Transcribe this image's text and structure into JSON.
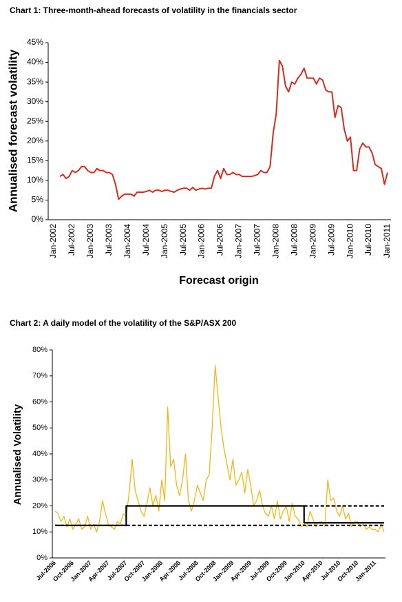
{
  "chart_data": [
    {
      "type": "line",
      "title": "Chart 1: Three-month-ahead forecasts of volatility in the financials sector",
      "y_label": "Annualised forecast volatility",
      "x_label": "Forecast origin",
      "categories": [
        "Jan-2002",
        null,
        null,
        null,
        null,
        null,
        "Jul-2002",
        null,
        null,
        null,
        null,
        null,
        "Jan-2003",
        null,
        null,
        null,
        null,
        null,
        "Jul-2003",
        null,
        null,
        null,
        null,
        null,
        "Jan-2004",
        null,
        null,
        null,
        null,
        null,
        "Jul-2004",
        null,
        null,
        null,
        null,
        null,
        "Jan-2005",
        null,
        null,
        null,
        null,
        null,
        "Jul-2005",
        null,
        null,
        null,
        null,
        null,
        "Jan-2006",
        null,
        null,
        null,
        null,
        null,
        "Jul-2006",
        null,
        null,
        null,
        null,
        null,
        "Jan-2007",
        null,
        null,
        null,
        null,
        null,
        "Jul-2007",
        null,
        null,
        null,
        null,
        null,
        "Jan-2008",
        null,
        null,
        null,
        null,
        null,
        "Jul-2008",
        null,
        null,
        null,
        null,
        null,
        "Jan-2009",
        null,
        null,
        null,
        null,
        null,
        "Jul-2009",
        null,
        null,
        null,
        null,
        null,
        "Jan-2010",
        null,
        null,
        null,
        null,
        null,
        "Jul-2010",
        null,
        null,
        null,
        null,
        null,
        "Jan-2011"
      ],
      "series": [
        {
          "color": "#d52b1e",
          "values": [
            null,
            null,
            11,
            11.5,
            10.5,
            11,
            12.5,
            12,
            12.5,
            13.5,
            13.5,
            12.5,
            12,
            12,
            13,
            12.5,
            12.5,
            12,
            12,
            11.5,
            9,
            5.2,
            6,
            6.5,
            6.5,
            6.5,
            6,
            7,
            7,
            7,
            7.2,
            7.5,
            7,
            7.5,
            7.5,
            7.2,
            7.5,
            7.5,
            7.2,
            7,
            7.5,
            7.8,
            8,
            8,
            7.5,
            8.2,
            7.5,
            7.8,
            8,
            7.8,
            8,
            8,
            11,
            12.5,
            10.5,
            13,
            11.5,
            11.5,
            12,
            11.5,
            11.5,
            11,
            11,
            11,
            11,
            11.2,
            11.5,
            12.5,
            12,
            12,
            13.5,
            22,
            27,
            40.5,
            39,
            34,
            32.5,
            35,
            34.5,
            36,
            37,
            38.5,
            36,
            36,
            36,
            34.5,
            36,
            35.5,
            33,
            32.5,
            32.5,
            26,
            29,
            28.5,
            23,
            20,
            21,
            12.5,
            12.5,
            18,
            19.5,
            18.5,
            18.5,
            17,
            14,
            13.5,
            13,
            9,
            12
          ]
        }
      ],
      "ylim": [
        0,
        45
      ],
      "yticks": [
        {
          "value": 0,
          "label": "0%"
        },
        {
          "value": 5,
          "label": "5%"
        },
        {
          "value": 10,
          "label": "10%"
        },
        {
          "value": 15,
          "label": "15%"
        },
        {
          "value": 20,
          "label": "20%"
        },
        {
          "value": 25,
          "label": "25%"
        },
        {
          "value": 30,
          "label": "30%"
        },
        {
          "value": 35,
          "label": "35%"
        },
        {
          "value": 40,
          "label": "40%"
        },
        {
          "value": 45,
          "label": "45%"
        }
      ],
      "grid": false
    },
    {
      "type": "line",
      "title": "Chart 2: A daily model of the volatility of the S&P/ASX 200",
      "y_label": "Annualised Volatility",
      "categories": [
        "Jul-2006",
        null,
        null,
        null,
        null,
        null,
        "Oct-2006",
        null,
        null,
        null,
        null,
        null,
        "Jan-2007",
        null,
        null,
        null,
        null,
        null,
        "Apr-2007",
        null,
        null,
        null,
        null,
        null,
        "Jul-2007",
        null,
        null,
        null,
        null,
        null,
        "Oct-2007",
        null,
        null,
        null,
        null,
        null,
        "Jan-2008",
        null,
        null,
        null,
        null,
        null,
        "Apr-2008",
        null,
        null,
        null,
        null,
        null,
        "Jul-2008",
        null,
        null,
        null,
        null,
        null,
        "Oct-2008",
        null,
        null,
        null,
        null,
        null,
        "Jan-2009",
        null,
        null,
        null,
        null,
        null,
        "Apr-2009",
        null,
        null,
        null,
        null,
        null,
        "Jul-2009",
        null,
        null,
        null,
        null,
        null,
        "Oct-2009",
        null,
        null,
        null,
        null,
        null,
        "Jan-2010",
        null,
        null,
        null,
        null,
        null,
        "Apr-2010",
        null,
        null,
        null,
        null,
        null,
        "Jul-2010",
        null,
        null,
        null,
        null,
        null,
        "Oct-2010",
        null,
        null,
        null,
        null,
        null,
        "Jan-2011",
        null,
        null,
        null
      ],
      "series": [
        {
          "color": "#f5b611",
          "values": [
            18,
            17,
            14,
            16,
            12,
            15,
            11,
            13,
            15,
            11,
            12,
            16,
            11,
            13,
            10,
            14,
            22,
            17,
            13,
            12,
            11,
            14,
            13,
            17,
            16,
            25,
            38,
            26,
            22,
            18,
            16,
            21,
            27,
            20,
            24,
            18,
            30,
            22,
            58,
            35,
            38,
            28,
            24,
            30,
            40,
            22,
            18,
            22,
            28,
            25,
            22,
            30,
            32,
            50,
            74,
            62,
            50,
            42,
            36,
            30,
            38,
            28,
            30,
            33,
            25,
            34,
            28,
            20,
            22,
            26,
            20,
            17,
            16,
            20,
            15,
            22,
            15,
            18,
            20,
            14,
            21,
            16,
            15,
            12,
            13,
            12,
            18,
            15,
            12,
            14,
            14,
            12,
            30,
            22,
            23,
            18,
            16,
            20,
            15,
            17,
            12,
            14,
            14,
            12,
            13,
            11,
            12,
            11,
            11,
            10,
            13,
            10
          ]
        },
        {
          "color": "#000000",
          "step": true,
          "values": [
            12.5,
            12.5,
            12.5,
            12.5,
            12.5,
            12.5,
            12.5,
            12.5,
            12.5,
            12.5,
            12.5,
            12.5,
            12.5,
            12.5,
            12.5,
            12.5,
            12.5,
            12.5,
            12.5,
            12.5,
            12.5,
            12.5,
            12.5,
            12.5,
            20,
            20,
            20,
            20,
            20,
            20,
            20,
            20,
            20,
            20,
            20,
            20,
            20,
            20,
            20,
            20,
            20,
            20,
            20,
            20,
            20,
            20,
            20,
            20,
            20,
            20,
            20,
            20,
            20,
            20,
            20,
            20,
            20,
            20,
            20,
            20,
            20,
            20,
            20,
            20,
            20,
            20,
            20,
            20,
            20,
            20,
            20,
            20,
            20,
            20,
            20,
            20,
            20,
            20,
            20,
            20,
            20,
            20,
            20,
            20,
            13.5,
            13.5,
            13.5,
            13.5,
            13.5,
            13.5,
            13.5,
            13.5,
            13.5,
            13.5,
            13.5,
            13.5,
            13.5,
            13.5,
            13.5,
            13.5,
            13.5,
            13.5,
            13.5,
            13.5,
            13.5,
            13.5,
            13.5,
            13.5,
            13.5,
            13.5,
            13.5,
            13.5
          ]
        },
        {
          "color": "#000000",
          "dash": true,
          "values": [
            12.5,
            12.5,
            12.5,
            12.5,
            12.5,
            12.5,
            12.5,
            12.5,
            12.5,
            12.5,
            12.5,
            12.5,
            12.5,
            12.5,
            12.5,
            12.5,
            12.5,
            12.5,
            12.5,
            12.5,
            12.5,
            12.5,
            12.5,
            12.5,
            12.5,
            12.5,
            12.5,
            12.5,
            12.5,
            12.5,
            12.5,
            12.5,
            12.5,
            12.5,
            12.5,
            12.5,
            12.5,
            12.5,
            12.5,
            12.5,
            12.5,
            12.5,
            12.5,
            12.5,
            12.5,
            12.5,
            12.5,
            12.5,
            12.5,
            12.5,
            12.5,
            12.5,
            12.5,
            12.5,
            12.5,
            12.5,
            12.5,
            12.5,
            12.5,
            12.5,
            12.5,
            12.5,
            12.5,
            12.5,
            12.5,
            12.5,
            12.5,
            12.5,
            12.5,
            12.5,
            12.5,
            12.5,
            12.5,
            12.5,
            12.5,
            12.5,
            12.5,
            12.5,
            12.5,
            12.5,
            12.5,
            12.5,
            12.5,
            12.5,
            12.5,
            12.5,
            12.5,
            12.5,
            12.5,
            12.5,
            12.5,
            12.5,
            12.5,
            12.5,
            12.5,
            12.5,
            12.5,
            12.5,
            12.5,
            12.5,
            12.5,
            12.5,
            12.5,
            12.5,
            12.5,
            12.5,
            12.5,
            12.5,
            12.5,
            12.5,
            12.5,
            12.5
          ]
        },
        {
          "color": "#000000",
          "dash": true,
          "values": [
            null,
            null,
            null,
            null,
            null,
            null,
            null,
            null,
            null,
            null,
            null,
            null,
            null,
            null,
            null,
            null,
            null,
            null,
            null,
            null,
            null,
            null,
            null,
            null,
            null,
            null,
            null,
            null,
            null,
            null,
            null,
            null,
            null,
            null,
            null,
            null,
            null,
            null,
            null,
            null,
            null,
            null,
            null,
            null,
            null,
            null,
            null,
            null,
            null,
            null,
            null,
            null,
            null,
            null,
            null,
            null,
            null,
            null,
            null,
            null,
            null,
            null,
            null,
            null,
            null,
            null,
            null,
            null,
            null,
            null,
            null,
            null,
            null,
            null,
            null,
            null,
            null,
            null,
            null,
            null,
            null,
            null,
            null,
            null,
            20,
            20,
            20,
            20,
            20,
            20,
            20,
            20,
            20,
            20,
            20,
            20,
            20,
            20,
            20,
            20,
            20,
            20,
            20,
            20,
            20,
            20,
            20,
            20,
            20,
            20,
            20,
            20
          ]
        }
      ],
      "ylim": [
        0,
        80
      ],
      "yticks": [
        {
          "value": 0,
          "label": "0%"
        },
        {
          "value": 10,
          "label": "10%"
        },
        {
          "value": 20,
          "label": "20%"
        },
        {
          "value": 30,
          "label": "30%"
        },
        {
          "value": 40,
          "label": "40%"
        },
        {
          "value": 50,
          "label": "50%"
        },
        {
          "value": 60,
          "label": "60%"
        },
        {
          "value": 70,
          "label": "70%"
        },
        {
          "value": 80,
          "label": "80%"
        }
      ],
      "grid": false
    }
  ]
}
